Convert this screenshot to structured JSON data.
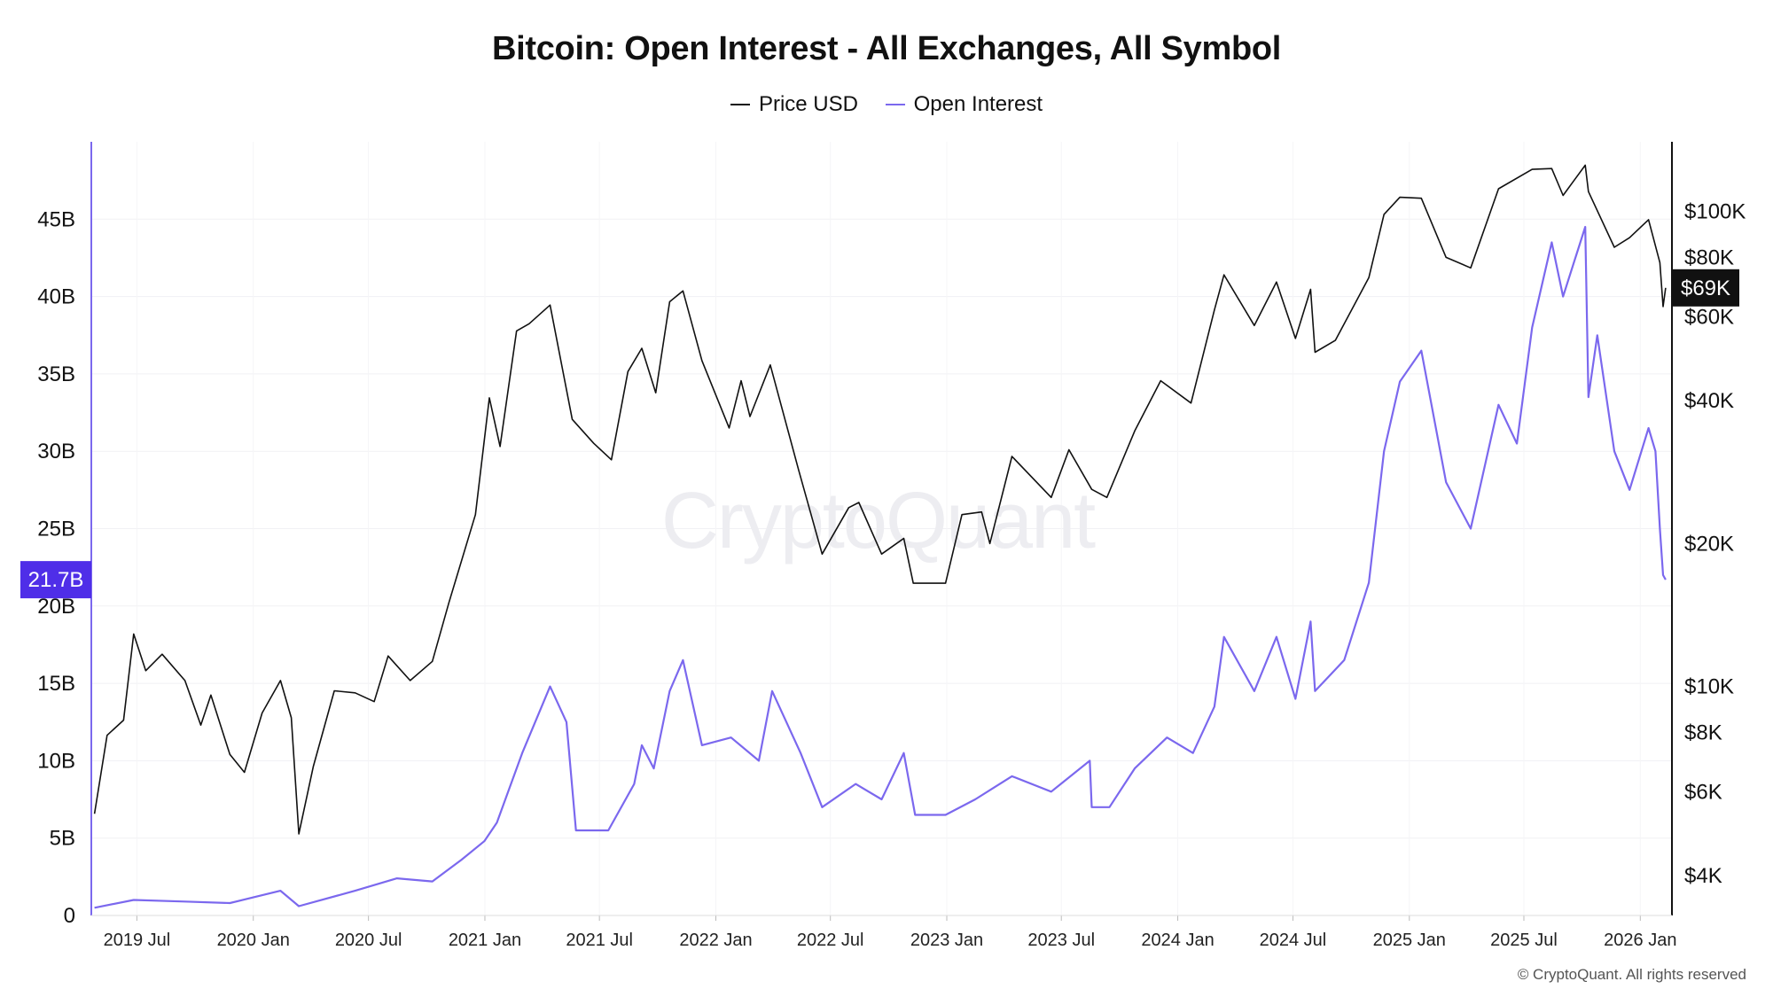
{
  "chart_data": {
    "type": "line",
    "title": "Bitcoin: Open Interest - All Exchanges, All Symbol",
    "legend": {
      "placement": "top-center",
      "entries": [
        "Price USD",
        "Open Interest"
      ]
    },
    "colors": {
      "price": "#111111",
      "open_interest": "#7b68ee",
      "left_axis": "#7b68ee",
      "oi_badge": "#4f2ee8",
      "price_badge": "#111111"
    },
    "watermark": "CryptoQuant",
    "x_axis": {
      "type": "date",
      "range": [
        "2019-04-20",
        "2026-02-20"
      ],
      "ticks": [
        {
          "date": "2019-07-01",
          "label": "2019 Jul"
        },
        {
          "date": "2020-01-01",
          "label": "2020 Jan"
        },
        {
          "date": "2020-07-01",
          "label": "2020 Jul"
        },
        {
          "date": "2021-01-01",
          "label": "2021 Jan"
        },
        {
          "date": "2021-07-01",
          "label": "2021 Jul"
        },
        {
          "date": "2022-01-01",
          "label": "2022 Jan"
        },
        {
          "date": "2022-07-01",
          "label": "2022 Jul"
        },
        {
          "date": "2023-01-01",
          "label": "2023 Jan"
        },
        {
          "date": "2023-07-01",
          "label": "2023 Jul"
        },
        {
          "date": "2024-01-01",
          "label": "2024 Jan"
        },
        {
          "date": "2024-07-01",
          "label": "2024 Jul"
        },
        {
          "date": "2025-01-01",
          "label": "2025 Jan"
        },
        {
          "date": "2025-07-01",
          "label": "2025 Jul"
        },
        {
          "date": "2026-01-01",
          "label": "2026 Jan"
        }
      ]
    },
    "y_left": {
      "series": "Open Interest",
      "range": [
        0,
        50
      ],
      "ticks": [
        {
          "value": 0,
          "label": "0"
        },
        {
          "value": 5,
          "label": "5B"
        },
        {
          "value": 10,
          "label": "10B"
        },
        {
          "value": 15,
          "label": "15B"
        },
        {
          "value": 20,
          "label": "20B"
        },
        {
          "value": 25,
          "label": "25B"
        },
        {
          "value": 30,
          "label": "30B"
        },
        {
          "value": 35,
          "label": "35B"
        },
        {
          "value": 40,
          "label": "40B"
        },
        {
          "value": 45,
          "label": "45B"
        }
      ],
      "current_label": "21.7B",
      "current_value": 21.7
    },
    "y_right": {
      "series": "Price USD",
      "scale": "log",
      "range": [
        3300,
        140000
      ],
      "ticks": [
        {
          "value": 4000,
          "label": "$4K"
        },
        {
          "value": 6000,
          "label": "$6K"
        },
        {
          "value": 8000,
          "label": "$8K"
        },
        {
          "value": 10000,
          "label": "$10K"
        },
        {
          "value": 20000,
          "label": "$20K"
        },
        {
          "value": 40000,
          "label": "$40K"
        },
        {
          "value": 60000,
          "label": "$60K"
        },
        {
          "value": 80000,
          "label": "$80K"
        },
        {
          "value": 100000,
          "label": "$100K"
        }
      ],
      "current_label": "$69K",
      "current_value": 69000
    },
    "series": [
      {
        "name": "Price USD",
        "axis": "right",
        "points": [
          [
            "2019-04-25",
            5400
          ],
          [
            "2019-05-15",
            7900
          ],
          [
            "2019-06-10",
            8500
          ],
          [
            "2019-06-26",
            12900
          ],
          [
            "2019-07-15",
            10800
          ],
          [
            "2019-08-10",
            11700
          ],
          [
            "2019-09-15",
            10300
          ],
          [
            "2019-10-10",
            8300
          ],
          [
            "2019-10-26",
            9600
          ],
          [
            "2019-11-25",
            7200
          ],
          [
            "2019-12-18",
            6600
          ],
          [
            "2020-01-15",
            8800
          ],
          [
            "2020-02-13",
            10300
          ],
          [
            "2020-03-01",
            8600
          ],
          [
            "2020-03-13",
            4900
          ],
          [
            "2020-04-05",
            6800
          ],
          [
            "2020-05-08",
            9800
          ],
          [
            "2020-06-10",
            9700
          ],
          [
            "2020-07-10",
            9300
          ],
          [
            "2020-08-01",
            11600
          ],
          [
            "2020-09-05",
            10300
          ],
          [
            "2020-10-10",
            11300
          ],
          [
            "2020-11-05",
            15000
          ],
          [
            "2020-12-17",
            23000
          ],
          [
            "2021-01-08",
            40500
          ],
          [
            "2021-01-25",
            32000
          ],
          [
            "2021-02-20",
            56000
          ],
          [
            "2021-03-12",
            58000
          ],
          [
            "2021-04-14",
            63500
          ],
          [
            "2021-05-19",
            36500
          ],
          [
            "2021-06-22",
            32500
          ],
          [
            "2021-07-20",
            30000
          ],
          [
            "2021-08-15",
            46000
          ],
          [
            "2021-09-06",
            51500
          ],
          [
            "2021-09-28",
            41500
          ],
          [
            "2021-10-20",
            64500
          ],
          [
            "2021-11-10",
            68000
          ],
          [
            "2021-12-10",
            48500
          ],
          [
            "2022-01-22",
            35000
          ],
          [
            "2022-02-10",
            44000
          ],
          [
            "2022-02-24",
            37000
          ],
          [
            "2022-03-28",
            47500
          ],
          [
            "2022-05-12",
            28500
          ],
          [
            "2022-06-18",
            19000
          ],
          [
            "2022-07-30",
            23800
          ],
          [
            "2022-08-15",
            24400
          ],
          [
            "2022-09-20",
            19000
          ],
          [
            "2022-10-25",
            20500
          ],
          [
            "2022-11-09",
            16500
          ],
          [
            "2022-12-30",
            16500
          ],
          [
            "2023-01-25",
            23000
          ],
          [
            "2023-02-25",
            23300
          ],
          [
            "2023-03-10",
            20000
          ],
          [
            "2023-04-14",
            30500
          ],
          [
            "2023-06-15",
            25000
          ],
          [
            "2023-07-13",
            31500
          ],
          [
            "2023-08-18",
            26000
          ],
          [
            "2023-09-11",
            25000
          ],
          [
            "2023-10-25",
            34500
          ],
          [
            "2023-12-05",
            44000
          ],
          [
            "2024-01-22",
            39500
          ],
          [
            "2024-02-28",
            62000
          ],
          [
            "2024-03-14",
            73500
          ],
          [
            "2024-05-01",
            57500
          ],
          [
            "2024-06-05",
            71000
          ],
          [
            "2024-07-05",
            54000
          ],
          [
            "2024-07-29",
            68500
          ],
          [
            "2024-08-05",
            50500
          ],
          [
            "2024-09-06",
            53500
          ],
          [
            "2024-10-29",
            72500
          ],
          [
            "2024-11-22",
            98500
          ],
          [
            "2024-12-17",
            107000
          ],
          [
            "2025-01-20",
            106500
          ],
          [
            "2025-02-28",
            80000
          ],
          [
            "2025-04-08",
            76000
          ],
          [
            "2025-05-22",
            111500
          ],
          [
            "2025-07-14",
            122500
          ],
          [
            "2025-08-14",
            123000
          ],
          [
            "2025-09-01",
            108000
          ],
          [
            "2025-10-06",
            125000
          ],
          [
            "2025-10-11",
            110000
          ],
          [
            "2025-11-21",
            84000
          ],
          [
            "2025-12-15",
            88000
          ],
          [
            "2026-01-14",
            96000
          ],
          [
            "2026-02-01",
            78000
          ],
          [
            "2026-02-06",
            63000
          ],
          [
            "2026-02-10",
            69000
          ]
        ]
      },
      {
        "name": "Open Interest",
        "axis": "left",
        "points": [
          [
            "2019-04-25",
            0.5
          ],
          [
            "2019-06-26",
            1.0
          ],
          [
            "2019-09-15",
            0.9
          ],
          [
            "2019-11-25",
            0.8
          ],
          [
            "2020-02-13",
            1.6
          ],
          [
            "2020-03-13",
            0.6
          ],
          [
            "2020-06-10",
            1.6
          ],
          [
            "2020-08-15",
            2.4
          ],
          [
            "2020-10-10",
            2.2
          ],
          [
            "2020-11-25",
            3.6
          ],
          [
            "2020-12-31",
            4.8
          ],
          [
            "2021-01-20",
            6.0
          ],
          [
            "2021-03-01",
            10.5
          ],
          [
            "2021-04-14",
            14.8
          ],
          [
            "2021-05-10",
            12.5
          ],
          [
            "2021-05-25",
            5.5
          ],
          [
            "2021-07-15",
            5.5
          ],
          [
            "2021-08-25",
            8.5
          ],
          [
            "2021-09-06",
            11.0
          ],
          [
            "2021-09-25",
            9.5
          ],
          [
            "2021-10-20",
            14.5
          ],
          [
            "2021-11-10",
            16.5
          ],
          [
            "2021-12-10",
            11.0
          ],
          [
            "2022-01-25",
            11.5
          ],
          [
            "2022-03-10",
            10.0
          ],
          [
            "2022-03-31",
            14.5
          ],
          [
            "2022-05-15",
            10.5
          ],
          [
            "2022-06-18",
            7.0
          ],
          [
            "2022-08-10",
            8.5
          ],
          [
            "2022-09-20",
            7.5
          ],
          [
            "2022-10-25",
            10.5
          ],
          [
            "2022-11-12",
            6.5
          ],
          [
            "2022-12-30",
            6.5
          ],
          [
            "2023-02-15",
            7.5
          ],
          [
            "2023-04-14",
            9.0
          ],
          [
            "2023-06-15",
            8.0
          ],
          [
            "2023-08-15",
            10.0
          ],
          [
            "2023-08-18",
            7.0
          ],
          [
            "2023-09-15",
            7.0
          ],
          [
            "2023-10-25",
            9.5
          ],
          [
            "2023-12-15",
            11.5
          ],
          [
            "2024-01-25",
            10.5
          ],
          [
            "2024-02-28",
            13.5
          ],
          [
            "2024-03-14",
            18.0
          ],
          [
            "2024-05-01",
            14.5
          ],
          [
            "2024-06-05",
            18.0
          ],
          [
            "2024-07-05",
            14.0
          ],
          [
            "2024-07-29",
            19.0
          ],
          [
            "2024-08-05",
            14.5
          ],
          [
            "2024-09-20",
            16.5
          ],
          [
            "2024-10-29",
            21.5
          ],
          [
            "2024-11-22",
            30.0
          ],
          [
            "2024-12-17",
            34.5
          ],
          [
            "2025-01-20",
            36.5
          ],
          [
            "2025-02-28",
            28.0
          ],
          [
            "2025-04-08",
            25.0
          ],
          [
            "2025-05-22",
            33.0
          ],
          [
            "2025-06-20",
            30.5
          ],
          [
            "2025-07-14",
            38.0
          ],
          [
            "2025-08-14",
            43.5
          ],
          [
            "2025-09-01",
            40.0
          ],
          [
            "2025-10-06",
            44.5
          ],
          [
            "2025-10-11",
            33.5
          ],
          [
            "2025-10-25",
            37.5
          ],
          [
            "2025-11-21",
            30.0
          ],
          [
            "2025-12-15",
            27.5
          ],
          [
            "2026-01-14",
            31.5
          ],
          [
            "2026-01-25",
            30.0
          ],
          [
            "2026-02-01",
            25.0
          ],
          [
            "2026-02-06",
            22.0
          ],
          [
            "2026-02-10",
            21.7
          ]
        ]
      }
    ]
  },
  "footer": {
    "copyright": "© CryptoQuant. All rights reserved"
  }
}
